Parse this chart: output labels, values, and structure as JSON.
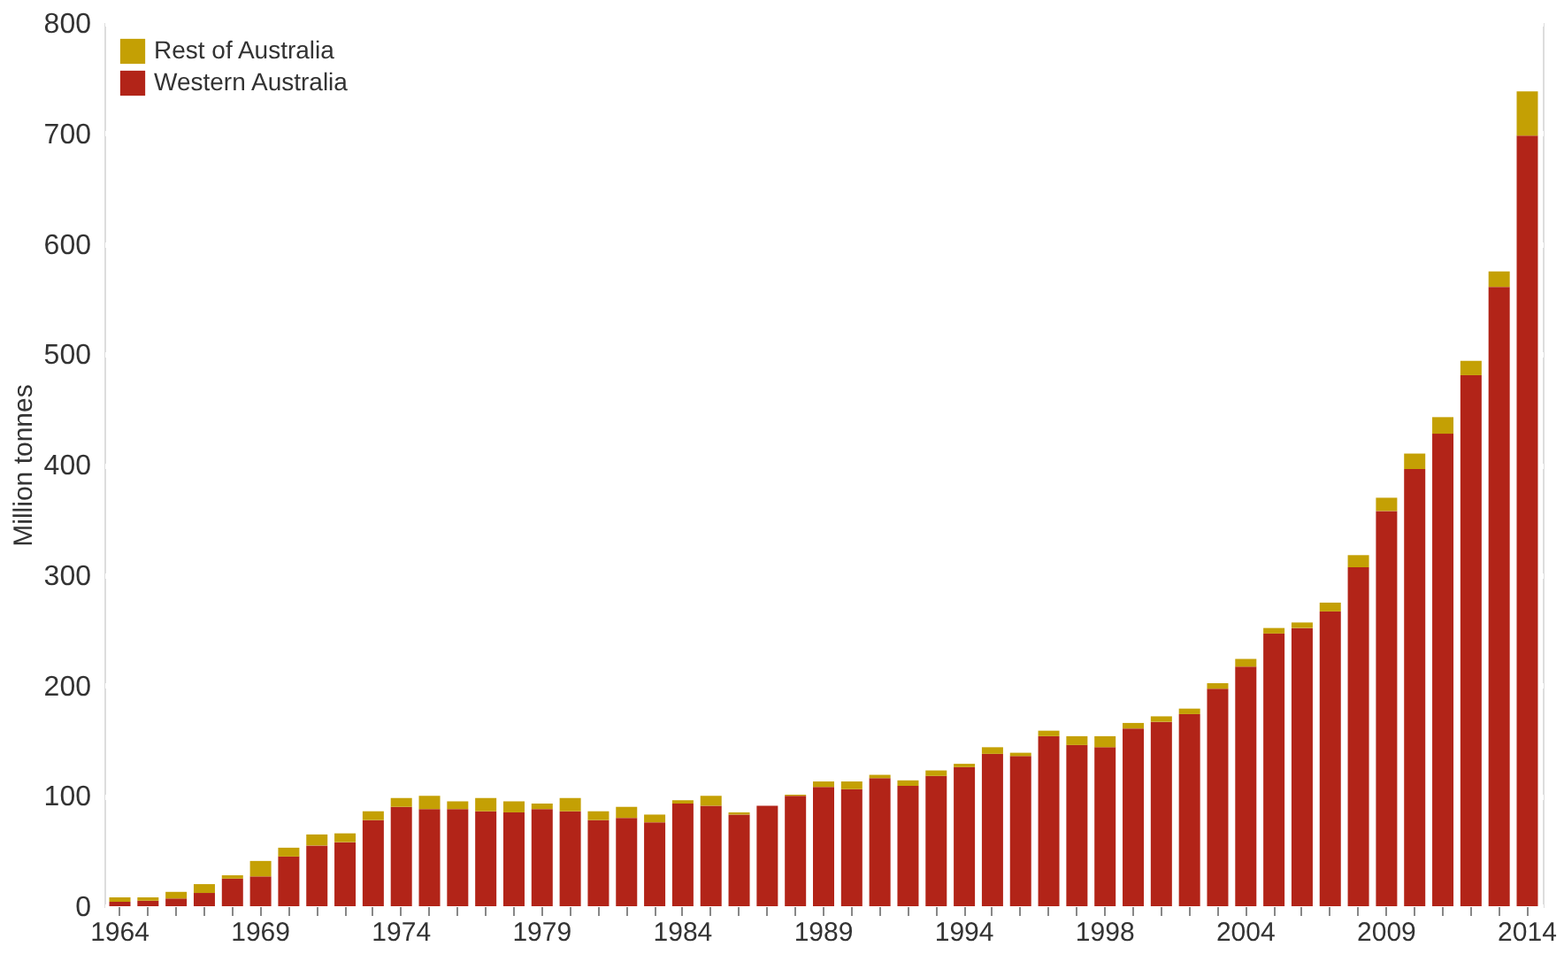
{
  "chart_data": {
    "type": "bar",
    "stacked": true,
    "ylabel": "Million tonnes",
    "categories": [
      "1964",
      null,
      null,
      null,
      null,
      "1969",
      null,
      null,
      null,
      null,
      "1974",
      null,
      null,
      null,
      null,
      "1979",
      null,
      null,
      null,
      null,
      "1984",
      null,
      null,
      null,
      null,
      "1989",
      null,
      null,
      null,
      null,
      "1994",
      null,
      null,
      null,
      null,
      "1998",
      null,
      null,
      null,
      null,
      "2004",
      null,
      null,
      null,
      null,
      "2009",
      null,
      null,
      null,
      null,
      "2014"
    ],
    "series": [
      {
        "name": "Western Australia",
        "color": "#b22418",
        "values": [
          4,
          5,
          7,
          12,
          25,
          27,
          45,
          55,
          58,
          78,
          90,
          88,
          88,
          86,
          85,
          88,
          86,
          78,
          80,
          76,
          93,
          91,
          83,
          91,
          100,
          108,
          106,
          116,
          109,
          118,
          126,
          138,
          136,
          154,
          146,
          144,
          161,
          167,
          174,
          197,
          217,
          247,
          252,
          267,
          307,
          358,
          396,
          428,
          481,
          561,
          698
        ]
      },
      {
        "name": "Rest of Australia",
        "color": "#c4a004",
        "values": [
          4,
          3,
          6,
          8,
          3,
          14,
          8,
          10,
          8,
          8,
          8,
          12,
          7,
          12,
          10,
          5,
          12,
          8,
          10,
          7,
          3,
          9,
          2,
          0,
          1,
          5,
          7,
          3,
          5,
          5,
          3,
          6,
          3,
          5,
          8,
          10,
          5,
          5,
          5,
          5,
          7,
          5,
          5,
          8,
          11,
          12,
          14,
          15,
          13,
          14,
          40
        ]
      }
    ],
    "ylim": [
      0,
      800
    ],
    "yticks": [
      0,
      100,
      200,
      300,
      400,
      500,
      600,
      700,
      800
    ],
    "grid": "y",
    "legend": "top left"
  }
}
